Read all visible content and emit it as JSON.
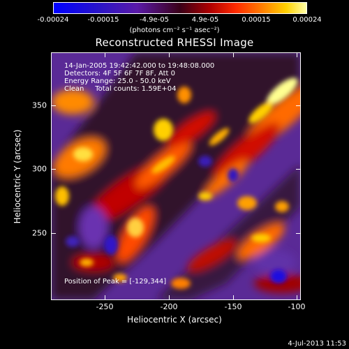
{
  "colorbar": {
    "ticks": [
      "-0.00024",
      "-0.00015",
      "-4.9e-05",
      "4.9e-05",
      "0.00015",
      "0.00024"
    ],
    "units": "(photons cm⁻² s⁻¹ asec⁻²)"
  },
  "title": "Reconstructed RHESSI Image",
  "info": {
    "time": "14-Jan-2005 19:42:42.000 to 19:48:08.000",
    "detectors": "Detectors: 4F 5F 6F 7F 8F, Att 0",
    "energy": "Energy Range: 25.0 - 50.0 keV",
    "clean": "Clean     Total counts: 1.59E+04",
    "peak": "Position of Peak = [-129,344]"
  },
  "footer": "4-Jul-2013 11:53",
  "chart_data": {
    "type": "heatmap",
    "title": "Reconstructed RHESSI Image",
    "xlabel": "Heliocentric X (arcsec)",
    "ylabel": "Heliocentric Y (arcsec)",
    "xlim": [
      -292,
      -97
    ],
    "ylim": [
      197,
      392
    ],
    "x_ticks": [
      -250,
      -200,
      -150,
      -100
    ],
    "y_ticks": [
      250,
      300,
      350
    ],
    "x_tick_labels": [
      "-250",
      "-200",
      "-150",
      "-100"
    ],
    "y_tick_labels": [
      "250",
      "300",
      "350"
    ],
    "colorbar_range": [
      -0.00024,
      0.00024
    ],
    "peak_position": [
      -129,
      344
    ],
    "colormap_stops": [
      "#0000ff",
      "#5a1aa8",
      "#3a0018",
      "#b00000",
      "#ff7a00",
      "#ffd000",
      "#ffffa8"
    ]
  }
}
